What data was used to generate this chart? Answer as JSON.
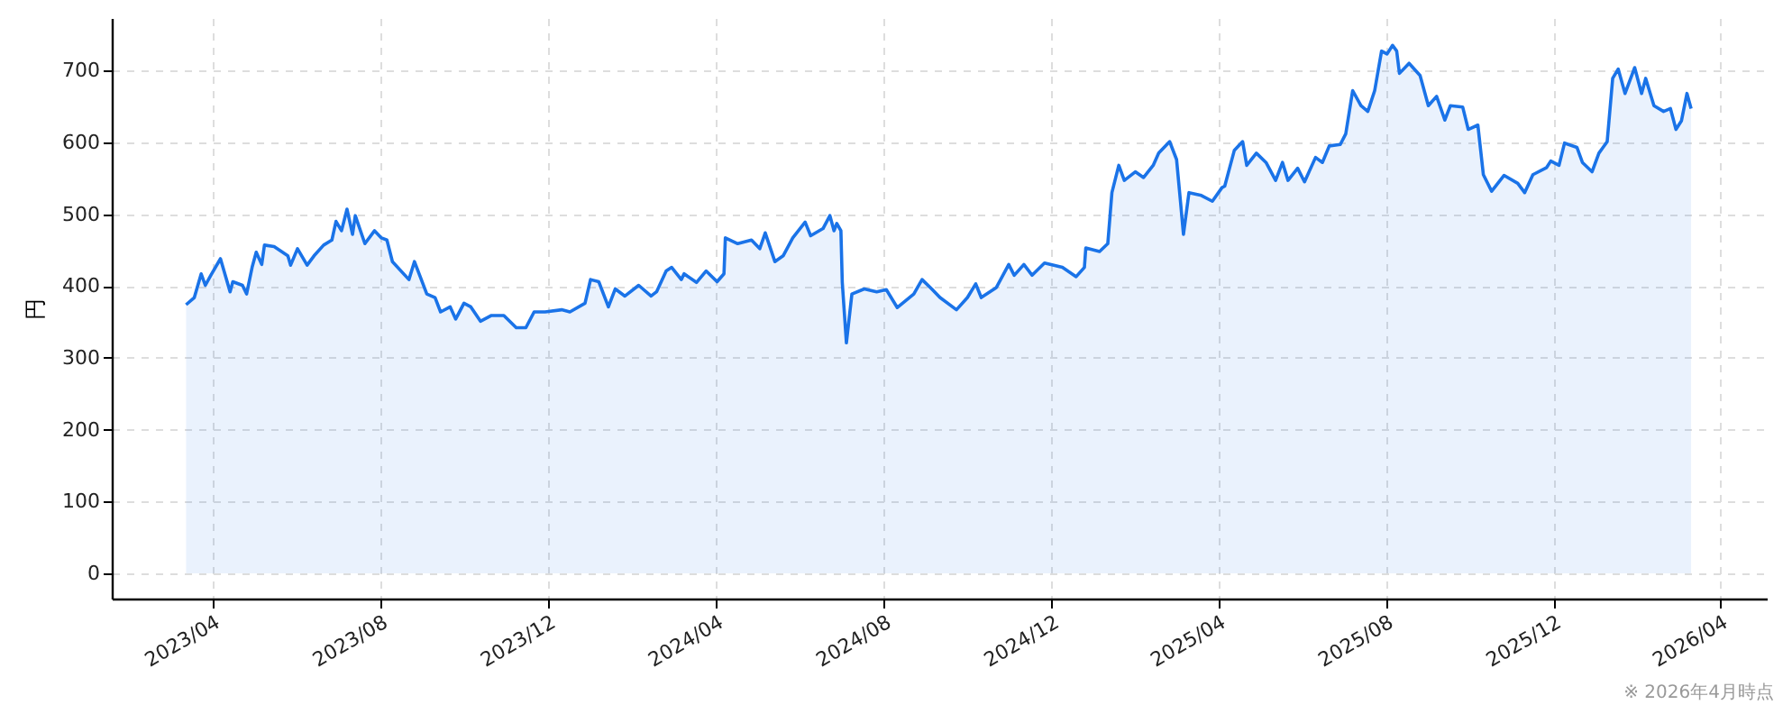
{
  "chart_data": {
    "type": "area",
    "ylabel": "円",
    "x": [
      "2023-03-13",
      "2023-03-19",
      "2023-03-24",
      "2023-03-27",
      "2023-03-31",
      "2023-04-07",
      "2023-04-14",
      "2023-04-16",
      "2023-04-23",
      "2023-04-26",
      "2023-04-30",
      "2023-05-03",
      "2023-05-07",
      "2023-05-09",
      "2023-05-16",
      "2023-05-26",
      "2023-05-28",
      "2023-06-02",
      "2023-06-09",
      "2023-06-14",
      "2023-06-21",
      "2023-06-27",
      "2023-06-30",
      "2023-07-04",
      "2023-07-08",
      "2023-07-12",
      "2023-07-14",
      "2023-07-21",
      "2023-07-28",
      "2023-08-02",
      "2023-08-06",
      "2023-08-10",
      "2023-08-22",
      "2023-08-26",
      "2023-08-30",
      "2023-09-04",
      "2023-09-10",
      "2023-09-14",
      "2023-09-21",
      "2023-09-25",
      "2023-10-01",
      "2023-10-06",
      "2023-10-13",
      "2023-10-21",
      "2023-10-30",
      "2023-11-08",
      "2023-11-15",
      "2023-11-21",
      "2023-11-29",
      "2023-12-11",
      "2023-12-17",
      "2023-12-28",
      "2024-01-01",
      "2024-01-07",
      "2024-01-14",
      "2024-01-19",
      "2024-01-26",
      "2024-02-05",
      "2024-02-14",
      "2024-02-18",
      "2024-02-25",
      "2024-02-29",
      "2024-03-07",
      "2024-03-09",
      "2024-03-18",
      "2024-03-25",
      "2024-04-02",
      "2024-04-07",
      "2024-04-08",
      "2024-04-17",
      "2024-04-27",
      "2024-05-03",
      "2024-05-07",
      "2024-05-14",
      "2024-05-20",
      "2024-05-27",
      "2024-06-05",
      "2024-06-09",
      "2024-06-18",
      "2024-06-23",
      "2024-06-26",
      "2024-06-28",
      "2024-07-01",
      "2024-07-02",
      "2024-07-05",
      "2024-07-09",
      "2024-07-18",
      "2024-07-27",
      "2024-08-03",
      "2024-08-11",
      "2024-08-23",
      "2024-08-29",
      "2024-09-05",
      "2024-09-11",
      "2024-09-23",
      "2024-10-01",
      "2024-10-07",
      "2024-10-11",
      "2024-10-22",
      "2024-10-31",
      "2024-11-04",
      "2024-11-11",
      "2024-11-17",
      "2024-11-26",
      "2024-12-09",
      "2024-12-19",
      "2024-12-25",
      "2024-12-26",
      "2025-01-05",
      "2025-01-11",
      "2025-01-14",
      "2025-01-19",
      "2025-01-23",
      "2025-01-31",
      "2025-02-06",
      "2025-02-13",
      "2025-02-17",
      "2025-02-25",
      "2025-03-02",
      "2025-03-05",
      "2025-03-07",
      "2025-03-11",
      "2025-03-20",
      "2025-03-28",
      "2025-04-04",
      "2025-04-06",
      "2025-04-13",
      "2025-04-19",
      "2025-04-22",
      "2025-04-29",
      "2025-05-06",
      "2025-05-13",
      "2025-05-18",
      "2025-05-22",
      "2025-05-29",
      "2025-06-03",
      "2025-06-11",
      "2025-06-16",
      "2025-06-21",
      "2025-06-29",
      "2025-07-03",
      "2025-07-08",
      "2025-07-14",
      "2025-07-19",
      "2025-07-24",
      "2025-07-29",
      "2025-08-02",
      "2025-08-06",
      "2025-08-09",
      "2025-08-11",
      "2025-08-18",
      "2025-08-26",
      "2025-09-01",
      "2025-09-07",
      "2025-09-13",
      "2025-09-17",
      "2025-09-26",
      "2025-09-30",
      "2025-10-07",
      "2025-10-11",
      "2025-10-17",
      "2025-10-26",
      "2025-11-05",
      "2025-11-10",
      "2025-11-16",
      "2025-11-26",
      "2025-11-29",
      "2025-12-05",
      "2025-12-09",
      "2025-12-18",
      "2025-12-22",
      "2025-12-29",
      "2026-01-03",
      "2026-01-09",
      "2026-01-13",
      "2026-01-17",
      "2026-01-22",
      "2026-01-29",
      "2026-02-03",
      "2026-02-06",
      "2026-02-12",
      "2026-02-19",
      "2026-02-24",
      "2026-02-28",
      "2026-03-04",
      "2026-03-08",
      "2026-03-11"
    ],
    "series": [
      {
        "color": "#1a73e8",
        "values": [
          374,
          384,
          417,
          401,
          415,
          438,
          392,
          406,
          401,
          389,
          426,
          447,
          430,
          457,
          455,
          442,
          429,
          452,
          429,
          442,
          457,
          464,
          490,
          477,
          507,
          472,
          498,
          459,
          477,
          467,
          464,
          434,
          409,
          434,
          414,
          389,
          384,
          364,
          371,
          354,
          376,
          371,
          351,
          359,
          359,
          342,
          342,
          364,
          364,
          367,
          364,
          376,
          409,
          406,
          371,
          396,
          386,
          401,
          386,
          392,
          421,
          426,
          409,
          417,
          405,
          421,
          406,
          417,
          467,
          459,
          464,
          452,
          474,
          434,
          442,
          467,
          489,
          470,
          480,
          498,
          477,
          487,
          477,
          405,
          321,
          389,
          396,
          392,
          395,
          370,
          389,
          409,
          396,
          384,
          367,
          384,
          403,
          384,
          398,
          430,
          415,
          430,
          415,
          432,
          426,
          413,
          426,
          453,
          448,
          459,
          530,
          568,
          547,
          559,
          551,
          568,
          585,
          601,
          576,
          514,
          472,
          530,
          526,
          518,
          537,
          539,
          589,
          601,
          568,
          585,
          572,
          547,
          572,
          547,
          564,
          545,
          579,
          572,
          595,
          597,
          612,
          672,
          651,
          643,
          672,
          727,
          723,
          735,
          727,
          696,
          710,
          693,
          651,
          664,
          631,
          651,
          649,
          618,
          624,
          555,
          532,
          554,
          543,
          530,
          555,
          565,
          574,
          568,
          599,
          593,
          572,
          559,
          585,
          601,
          689,
          702,
          668,
          704,
          668,
          689,
          651,
          643,
          647,
          618,
          630,
          668,
          647
        ]
      }
    ],
    "xlim": [
      "2023-01-18",
      "2026-05-05"
    ],
    "xticks": [
      {
        "value": "2023-04-01",
        "label": "2023/04"
      },
      {
        "value": "2023-08-01",
        "label": "2023/08"
      },
      {
        "value": "2023-12-01",
        "label": "2023/12"
      },
      {
        "value": "2024-04-01",
        "label": "2024/04"
      },
      {
        "value": "2024-08-01",
        "label": "2024/08"
      },
      {
        "value": "2024-12-01",
        "label": "2024/12"
      },
      {
        "value": "2025-04-01",
        "label": "2025/04"
      },
      {
        "value": "2025-08-01",
        "label": "2025/08"
      },
      {
        "value": "2025-12-01",
        "label": "2025/12"
      },
      {
        "value": "2026-04-01",
        "label": "2026/04"
      }
    ],
    "ylim": [
      -35,
      773
    ],
    "yticks": [
      0,
      100,
      200,
      300,
      400,
      500,
      600,
      700
    ],
    "grid": true,
    "line_style": "solid",
    "annotations": [
      "※ 2026年4月時点"
    ]
  }
}
